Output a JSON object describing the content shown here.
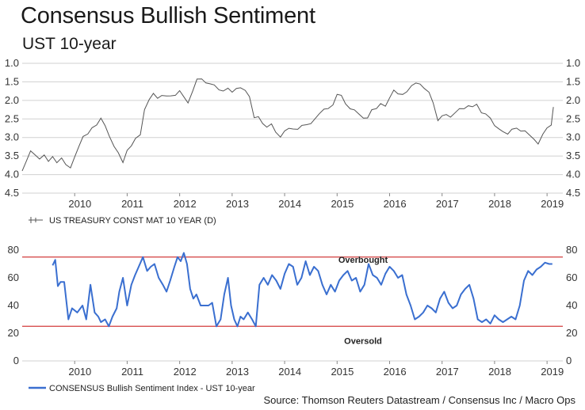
{
  "header": {
    "title": "Consensus Bullish Sentiment",
    "subtitle": "UST 10-year"
  },
  "source": "Source: Thomson Reuters Datastream / Consensus Inc / Macro Ops",
  "colors": {
    "yield_line": "#555555",
    "sentiment_line": "#3a6fd0",
    "thresholds": "#d23c3c",
    "grid": "#d0d0d0"
  },
  "chart_data": [
    {
      "type": "line",
      "title": "",
      "legend": "US TREASURY CONST MAT 10 YEAR (D)",
      "y_inverted": true,
      "ylim": [
        4.5,
        1.0
      ],
      "yticks": [
        "1.0",
        "1.5",
        "2.0",
        "2.5",
        "3.0",
        "3.5",
        "4.0",
        "4.5"
      ],
      "xticks": [
        "2010",
        "2011",
        "2012",
        "2013",
        "2014",
        "2015",
        "2016",
        "2017",
        "2018",
        "2019"
      ],
      "xlim": [
        2009.0,
        2019.3
      ],
      "grid": true,
      "series": [
        {
          "name": "US TREASURY CONST MAT 10 YEAR (D)",
          "x": [
            2009.0,
            2009.08,
            2009.16,
            2009.25,
            2009.33,
            2009.42,
            2009.5,
            2009.58,
            2009.66,
            2009.75,
            2009.83,
            2009.92,
            2010.0,
            2010.08,
            2010.16,
            2010.25,
            2010.33,
            2010.42,
            2010.5,
            2010.58,
            2010.66,
            2010.75,
            2010.83,
            2010.92,
            2011.0,
            2011.08,
            2011.16,
            2011.25,
            2011.33,
            2011.42,
            2011.5,
            2011.58,
            2011.66,
            2011.75,
            2011.83,
            2011.92,
            2012.0,
            2012.08,
            2012.16,
            2012.25,
            2012.33,
            2012.42,
            2012.5,
            2012.58,
            2012.66,
            2012.75,
            2012.83,
            2012.92,
            2013.0,
            2013.08,
            2013.16,
            2013.25,
            2013.33,
            2013.42,
            2013.5,
            2013.58,
            2013.66,
            2013.75,
            2013.83,
            2013.92,
            2014.0,
            2014.08,
            2014.16,
            2014.25,
            2014.33,
            2014.42,
            2014.5,
            2014.58,
            2014.66,
            2014.75,
            2014.83,
            2014.92,
            2015.0,
            2015.08,
            2015.16,
            2015.25,
            2015.33,
            2015.42,
            2015.5,
            2015.58,
            2015.66,
            2015.75,
            2015.83,
            2015.92,
            2016.0,
            2016.08,
            2016.16,
            2016.25,
            2016.33,
            2016.42,
            2016.5,
            2016.58,
            2016.66,
            2016.75,
            2016.83,
            2016.92,
            2017.0,
            2017.08,
            2017.16,
            2017.25,
            2017.33,
            2017.42,
            2017.5,
            2017.58,
            2017.66,
            2017.75,
            2017.83,
            2017.92,
            2018.0,
            2018.08,
            2018.16,
            2018.25,
            2018.33,
            2018.42,
            2018.5,
            2018.58,
            2018.66,
            2018.75,
            2018.83,
            2018.92,
            2019.0,
            2019.08,
            2019.12
          ],
          "y": [
            3.9,
            3.6,
            3.3,
            3.4,
            3.5,
            3.4,
            3.6,
            3.5,
            3.7,
            3.6,
            3.8,
            3.9,
            3.6,
            3.3,
            3.0,
            2.9,
            2.7,
            2.6,
            2.4,
            2.6,
            2.9,
            3.2,
            3.4,
            3.7,
            3.4,
            3.3,
            3.1,
            3.0,
            2.3,
            2.0,
            1.8,
            1.9,
            1.8,
            1.8,
            1.8,
            1.8,
            1.7,
            1.9,
            2.1,
            1.8,
            1.5,
            1.5,
            1.6,
            1.6,
            1.6,
            1.7,
            1.7,
            1.6,
            1.7,
            1.6,
            1.6,
            1.7,
            1.9,
            2.5,
            2.5,
            2.7,
            2.8,
            2.7,
            2.9,
            3.0,
            2.8,
            2.7,
            2.7,
            2.7,
            2.6,
            2.6,
            2.6,
            2.5,
            2.4,
            2.3,
            2.3,
            2.2,
            1.9,
            1.9,
            2.1,
            2.2,
            2.2,
            2.3,
            2.4,
            2.4,
            2.2,
            2.2,
            2.1,
            2.2,
            2.0,
            1.8,
            1.9,
            1.9,
            1.8,
            1.6,
            1.5,
            1.5,
            1.6,
            1.7,
            2.0,
            2.5,
            2.4,
            2.4,
            2.5,
            2.4,
            2.3,
            2.3,
            2.2,
            2.2,
            2.1,
            2.3,
            2.3,
            2.4,
            2.6,
            2.7,
            2.8,
            2.9,
            2.8,
            2.8,
            2.9,
            2.9,
            3.0,
            3.1,
            3.2,
            2.9,
            2.7,
            2.6,
            2.1
          ]
        }
      ]
    },
    {
      "type": "line",
      "title": "",
      "legend": "CONSENSUS Bullish Sentiment Index - UST 10-year",
      "ylim": [
        0,
        80
      ],
      "yticks": [
        "0",
        "20",
        "40",
        "60",
        "80"
      ],
      "xticks": [
        "2010",
        "2011",
        "2012",
        "2013",
        "2014",
        "2015",
        "2016",
        "2017",
        "2018",
        "2019"
      ],
      "xlim": [
        2009.0,
        2019.3
      ],
      "grid": false,
      "reference_lines": [
        {
          "value": 75,
          "label": "Overbought"
        },
        {
          "value": 25,
          "label": "Oversold"
        }
      ],
      "series": [
        {
          "name": "CONSENSUS Bullish Sentiment Index - UST 10-year",
          "x": [
            2009.58,
            2009.63,
            2009.68,
            2009.73,
            2009.8,
            2009.88,
            2009.95,
            2010.05,
            2010.15,
            2010.22,
            2010.3,
            2010.38,
            2010.45,
            2010.5,
            2010.58,
            2010.65,
            2010.72,
            2010.8,
            2010.85,
            2010.92,
            2011.0,
            2011.08,
            2011.15,
            2011.22,
            2011.3,
            2011.38,
            2011.45,
            2011.52,
            2011.6,
            2011.68,
            2011.75,
            2011.82,
            2011.9,
            2011.96,
            2012.02,
            2012.08,
            2012.14,
            2012.2,
            2012.26,
            2012.32,
            2012.4,
            2012.48,
            2012.55,
            2012.62,
            2012.7,
            2012.78,
            2012.85,
            2012.92,
            2012.98,
            2013.04,
            2013.1,
            2013.16,
            2013.22,
            2013.3,
            2013.38,
            2013.45,
            2013.52,
            2013.6,
            2013.68,
            2013.76,
            2013.84,
            2013.92,
            2014.0,
            2014.08,
            2014.16,
            2014.24,
            2014.32,
            2014.4,
            2014.48,
            2014.56,
            2014.64,
            2014.72,
            2014.8,
            2014.88,
            2014.96,
            2015.04,
            2015.12,
            2015.2,
            2015.28,
            2015.36,
            2015.44,
            2015.52,
            2015.6,
            2015.68,
            2015.76,
            2015.84,
            2015.92,
            2016.0,
            2016.08,
            2016.16,
            2016.24,
            2016.32,
            2016.4,
            2016.48,
            2016.56,
            2016.64,
            2016.72,
            2016.8,
            2016.88,
            2016.96,
            2017.04,
            2017.12,
            2017.2,
            2017.28,
            2017.36,
            2017.44,
            2017.52,
            2017.6,
            2017.68,
            2017.76,
            2017.84,
            2017.92,
            2018.0,
            2018.08,
            2018.16,
            2018.24,
            2018.32,
            2018.4,
            2018.48,
            2018.56,
            2018.64,
            2018.72,
            2018.8,
            2018.88,
            2018.96,
            2019.04,
            2019.1
          ],
          "y": [
            69,
            73,
            54,
            57,
            57,
            30,
            38,
            35,
            40,
            30,
            55,
            35,
            32,
            28,
            30,
            25,
            32,
            38,
            50,
            60,
            40,
            55,
            62,
            68,
            75,
            65,
            68,
            70,
            60,
            55,
            50,
            58,
            68,
            75,
            72,
            78,
            70,
            52,
            45,
            48,
            40,
            40,
            40,
            42,
            25,
            30,
            48,
            60,
            40,
            30,
            25,
            32,
            30,
            35,
            30,
            25,
            55,
            60,
            55,
            62,
            58,
            52,
            63,
            70,
            68,
            55,
            60,
            72,
            62,
            68,
            65,
            55,
            48,
            55,
            50,
            58,
            62,
            65,
            58,
            60,
            50,
            55,
            70,
            62,
            60,
            55,
            63,
            68,
            65,
            60,
            62,
            48,
            40,
            30,
            32,
            35,
            40,
            38,
            35,
            45,
            50,
            42,
            38,
            40,
            48,
            52,
            55,
            45,
            30,
            28,
            30,
            27,
            33,
            30,
            28,
            30,
            32,
            30,
            40,
            58,
            65,
            62,
            66,
            68,
            71,
            70,
            70
          ]
        }
      ]
    }
  ]
}
